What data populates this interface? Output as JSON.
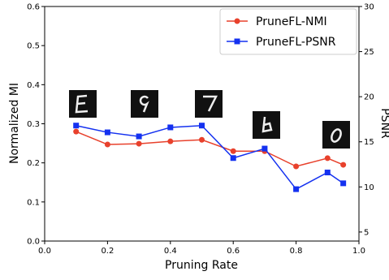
{
  "chart_data": {
    "type": "line",
    "x_label": "Pruning Rate",
    "y_label": "Normalized MI",
    "y2_label": "PSNR",
    "xlim": [
      0,
      1
    ],
    "xticks": [
      {
        "value": 0,
        "label": "0.0"
      },
      0.2,
      0.4,
      0.6,
      0.8,
      {
        "value": 1,
        "label": "1.0"
      }
    ],
    "ylim": [
      0,
      0.6
    ],
    "yticks": [
      {
        "value": 0,
        "label": "0.0"
      },
      0.1,
      0.2,
      0.3,
      0.4,
      0.5,
      0.6
    ],
    "y2lim": [
      4,
      30
    ],
    "y2ticks": [
      5,
      10,
      15,
      20,
      25,
      30
    ],
    "legend": "upper right",
    "x": [
      0.1,
      0.2,
      0.3,
      0.4,
      0.5,
      0.6,
      0.7,
      0.8,
      0.9,
      0.95
    ],
    "series": [
      {
        "name": "PruneFL-NMI",
        "color": "#e8412c",
        "marker": "circle",
        "values": [
          0.28,
          0.247,
          0.249,
          0.255,
          0.259,
          0.23,
          0.23,
          0.191,
          0.212,
          0.195
        ]
      },
      {
        "name": "PruneFL-PSNR",
        "color": "#1431f0",
        "marker": "square",
        "axis": "y2",
        "values": [
          16.8,
          16.05,
          15.6,
          16.6,
          16.8,
          13.2,
          14.25,
          9.75,
          11.6,
          10.4
        ]
      }
    ]
  }
}
